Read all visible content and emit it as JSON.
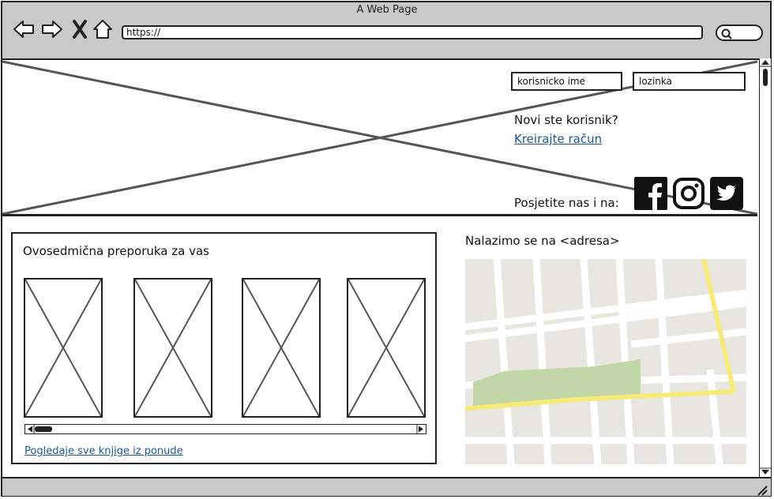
{
  "window": {
    "title": "A Web Page"
  },
  "toolbar": {
    "url": "https://"
  },
  "header": {
    "username_placeholder": "korisnicko ime",
    "password_placeholder": "lozinka",
    "new_user_text": "Novi ste korisnik?",
    "create_account_link": "Kreirajte račun ",
    "visit_us_text": "Posjetite nas i na:"
  },
  "recommendations": {
    "title": "Ovosedmična preporuka za vas",
    "view_all_link": "Pogledaje sve knjige iz ponude"
  },
  "location": {
    "title": "Nalazimo se na <adresa>"
  },
  "icons": [
    "back-arrow-icon",
    "forward-arrow-icon",
    "close-icon",
    "home-icon",
    "search-icon",
    "facebook-icon",
    "instagram-icon",
    "twitter-icon",
    "resize-grip-icon"
  ],
  "colors": {
    "link": "#1b5a9b",
    "map_road_major": "#f6ea7a",
    "map_park": "#c3d6a8",
    "map_bg": "#e8e6e0"
  }
}
